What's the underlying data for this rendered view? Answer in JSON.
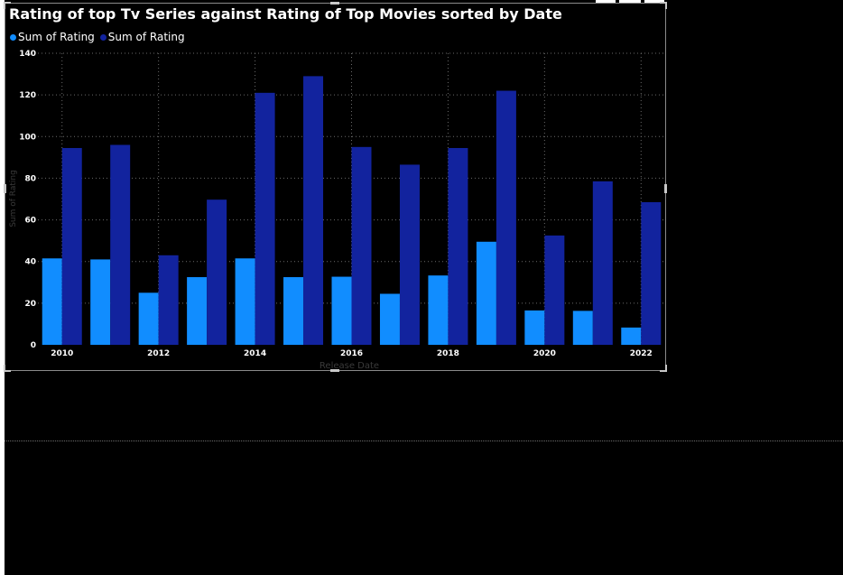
{
  "colors": {
    "background": "#000000",
    "series_tv": "#118dff",
    "series_movies": "#12239e",
    "text": "#ffffff",
    "axis_title": "#3a3a3a",
    "gridline": "#6a6a6a"
  },
  "chart_data": {
    "type": "bar",
    "title": "Rating of top Tv Series against Rating of Top Movies sorted by Date",
    "xlabel": "Release Date",
    "ylabel": "Sum of Rating",
    "categories": [
      "2010",
      "2011",
      "2012",
      "2013",
      "2014",
      "2015",
      "2016",
      "2017",
      "2018",
      "2019",
      "2020",
      "2021",
      "2022"
    ],
    "x_tick_labels": [
      "2010",
      "",
      "2012",
      "",
      "2014",
      "",
      "2016",
      "",
      "2018",
      "",
      "2020",
      "",
      "2022"
    ],
    "ylim": [
      0,
      140
    ],
    "y_ticks": [
      0,
      20,
      40,
      60,
      80,
      100,
      120,
      140
    ],
    "grid": true,
    "legend_position": "top-left",
    "series": [
      {
        "name": "Sum of Rating",
        "color": "#118dff",
        "values": [
          41.5,
          41,
          25,
          32.5,
          41.5,
          32.5,
          32.7,
          24.5,
          33.3,
          49.5,
          16.5,
          16.3,
          8.3
        ]
      },
      {
        "name": "Sum of Rating",
        "color": "#12239e",
        "values": [
          94.5,
          96,
          43,
          69.7,
          121,
          129,
          95,
          86.5,
          94.5,
          122,
          52.5,
          78.5,
          68.5
        ]
      }
    ]
  }
}
